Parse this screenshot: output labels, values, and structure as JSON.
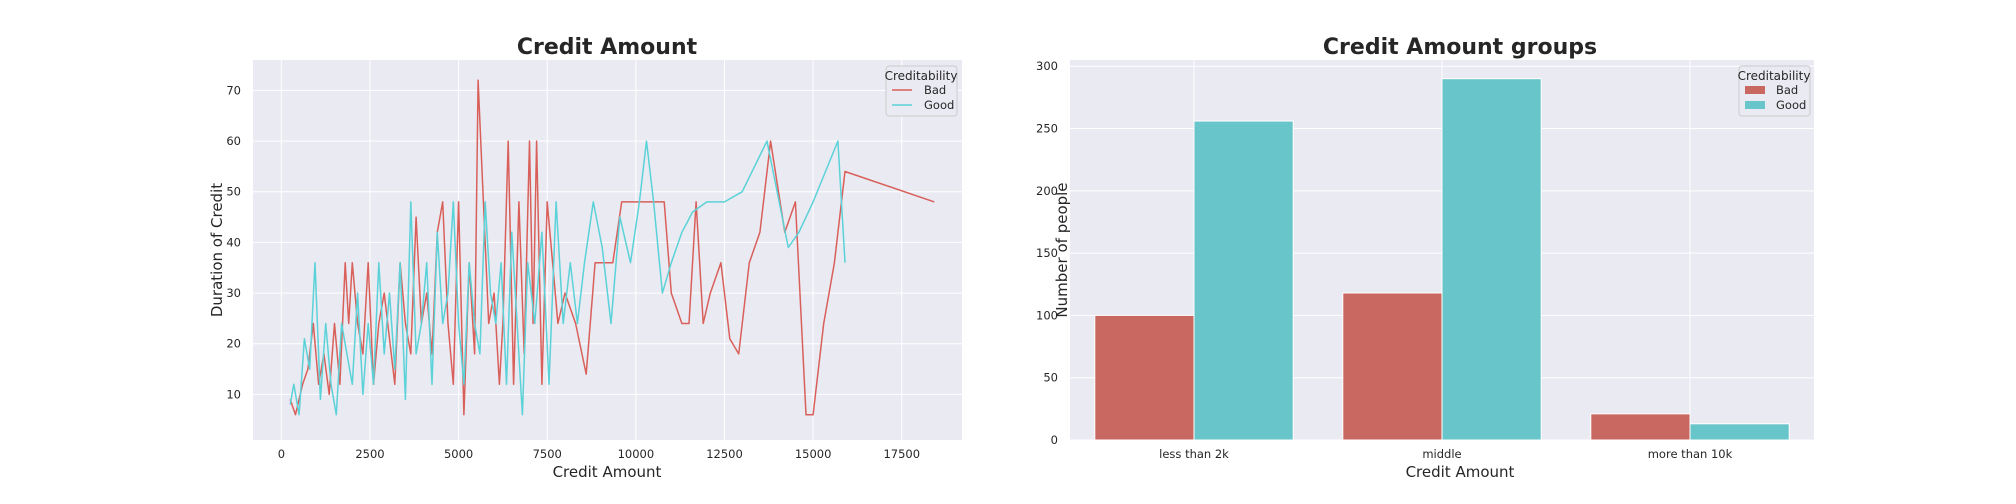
{
  "chart_data": [
    {
      "type": "line",
      "title": "Credit Amount",
      "xlabel": "Credit Amount",
      "ylabel": "Duration of Credit",
      "xlim": [
        -800,
        19200
      ],
      "ylim": [
        1,
        76
      ],
      "xticks": [
        0,
        2500,
        5000,
        7500,
        10000,
        12500,
        15000,
        17500
      ],
      "yticks": [
        10,
        20,
        30,
        40,
        50,
        60,
        70
      ],
      "grid": true,
      "legend": {
        "title": "Creditability",
        "placement": "top-right"
      },
      "series": [
        {
          "name": "Bad",
          "color": "#d9605a",
          "x": [
            250,
            400,
            600,
            750,
            900,
            1050,
            1200,
            1350,
            1500,
            1650,
            1800,
            1900,
            2000,
            2150,
            2300,
            2450,
            2600,
            2750,
            2900,
            3050,
            3200,
            3350,
            3500,
            3650,
            3800,
            3950,
            4100,
            4250,
            4400,
            4550,
            4700,
            4850,
            5000,
            5150,
            5300,
            5450,
            5550,
            5700,
            5850,
            6000,
            6150,
            6250,
            6400,
            6550,
            6700,
            6850,
            7000,
            7100,
            7200,
            7350,
            7500,
            7650,
            7800,
            8000,
            8300,
            8600,
            8850,
            9100,
            9350,
            9600,
            9900,
            10200,
            10500,
            10800,
            11000,
            11300,
            11500,
            11700,
            11900,
            12100,
            12400,
            12650,
            12900,
            13200,
            13500,
            13800,
            14200,
            14500,
            14800,
            15000,
            15300,
            15600,
            15900,
            18420
          ],
          "y": [
            9,
            6,
            12,
            15,
            24,
            12,
            18,
            10,
            24,
            12,
            36,
            24,
            36,
            24,
            18,
            36,
            12,
            24,
            30,
            21,
            12,
            36,
            24,
            18,
            45,
            24,
            30,
            18,
            42,
            48,
            24,
            12,
            48,
            6,
            36,
            18,
            72,
            48,
            24,
            30,
            12,
            24,
            60,
            12,
            48,
            18,
            60,
            24,
            60,
            12,
            48,
            36,
            24,
            30,
            24,
            14,
            36,
            36,
            36,
            48,
            48,
            48,
            48,
            48,
            30,
            24,
            24,
            48,
            24,
            30,
            36,
            21,
            18,
            36,
            42,
            60,
            42,
            48,
            6,
            6,
            24,
            36,
            54,
            48
          ]
        },
        {
          "name": "Good",
          "color": "#5ad2d8",
          "x": [
            250,
            350,
            500,
            650,
            800,
            950,
            1100,
            1250,
            1400,
            1550,
            1700,
            1850,
            2000,
            2150,
            2300,
            2450,
            2600,
            2750,
            2900,
            3050,
            3200,
            3350,
            3500,
            3650,
            3800,
            3950,
            4100,
            4250,
            4400,
            4550,
            4700,
            4850,
            5000,
            5150,
            5300,
            5450,
            5600,
            5750,
            5900,
            6050,
            6200,
            6350,
            6500,
            6650,
            6800,
            6950,
            7150,
            7350,
            7550,
            7750,
            7950,
            8150,
            8350,
            8550,
            8800,
            9050,
            9300,
            9550,
            9850,
            10100,
            10300,
            10500,
            10750,
            11000,
            11300,
            11600,
            12000,
            12500,
            13000,
            13700,
            14300,
            14600,
            15000,
            15700,
            15900
          ],
          "y": [
            8,
            12,
            6,
            21,
            15,
            36,
            9,
            24,
            12,
            6,
            24,
            18,
            12,
            30,
            10,
            24,
            12,
            36,
            18,
            30,
            15,
            36,
            9,
            48,
            18,
            24,
            36,
            12,
            42,
            24,
            30,
            48,
            24,
            12,
            36,
            24,
            18,
            48,
            30,
            24,
            36,
            12,
            42,
            24,
            6,
            36,
            24,
            42,
            12,
            48,
            24,
            36,
            24,
            36,
            48,
            39,
            24,
            45,
            36,
            48,
            60,
            48,
            30,
            36,
            42,
            46,
            48,
            48,
            50,
            60,
            39,
            42,
            48,
            60,
            36
          ]
        }
      ]
    },
    {
      "type": "bar",
      "title": "Credit Amount groups",
      "xlabel": "Credit Amount",
      "ylabel": "Number of people",
      "categories": [
        "less than 2k",
        "middle",
        "more than 10k"
      ],
      "ylim": [
        0,
        305
      ],
      "yticks": [
        0,
        50,
        100,
        150,
        200,
        250,
        300
      ],
      "grid": true,
      "legend": {
        "title": "Creditability",
        "placement": "top-right"
      },
      "series": [
        {
          "name": "Bad",
          "color": "#c96860",
          "values": [
            100,
            118,
            21
          ]
        },
        {
          "name": "Good",
          "color": "#68c5ca",
          "values": [
            256,
            290,
            13
          ]
        }
      ]
    }
  ]
}
